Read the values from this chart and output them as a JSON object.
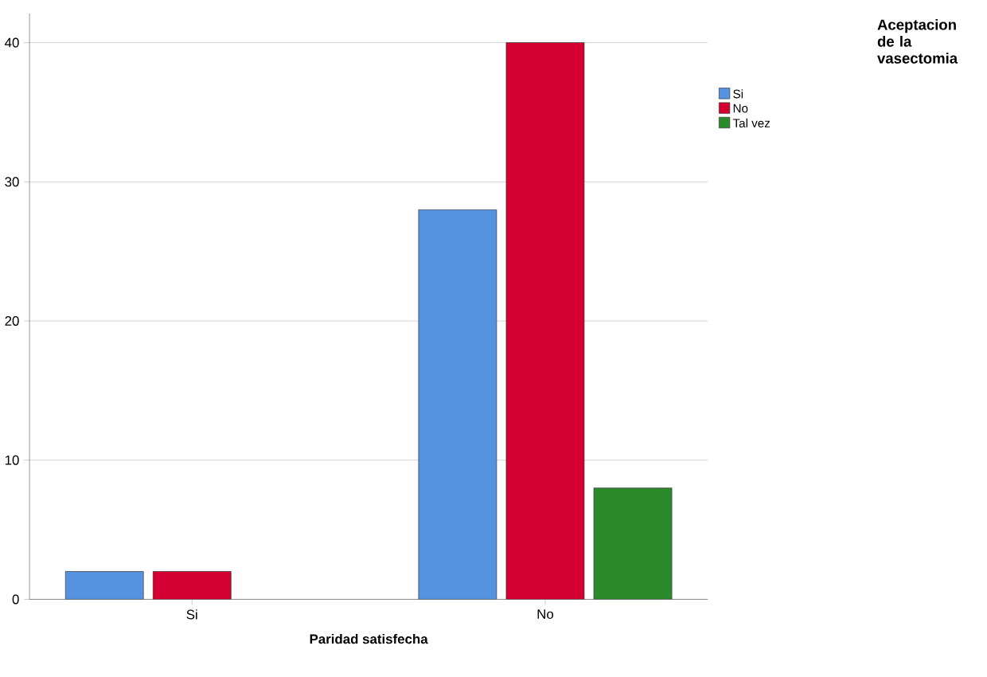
{
  "chart_data": {
    "type": "bar",
    "xlabel": "Paridad satisfecha",
    "legend_title": "Aceptacion de la vasectomia",
    "categories": [
      "Si",
      "No"
    ],
    "series": [
      {
        "name": "Si",
        "color": "#5592e0",
        "values": [
          2,
          28
        ]
      },
      {
        "name": "No",
        "color": "#d50032",
        "values": [
          2,
          40
        ]
      },
      {
        "name": "Tal vez",
        "color": "#2b8a2b",
        "values": [
          null,
          8
        ]
      }
    ],
    "ylim": [
      0,
      42.1
    ],
    "yticks": [
      0,
      10,
      20,
      30,
      40
    ],
    "grid": "y",
    "legend": "top right"
  }
}
